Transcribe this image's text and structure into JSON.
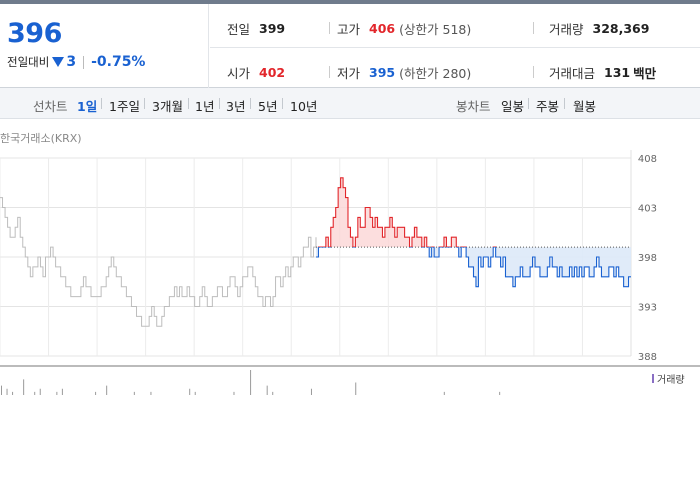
{
  "current": {
    "price": "396",
    "change_label": "전일대비",
    "change_direction": "down",
    "change": "3",
    "rate": "-0.75%"
  },
  "stats": {
    "prev_close": {
      "label": "전일",
      "value": "399"
    },
    "high": {
      "label": "고가",
      "value": "406",
      "limit_label": "상한가",
      "limit_value": "518"
    },
    "volume": {
      "label": "거래량",
      "value": "328,369"
    },
    "open": {
      "label": "시가",
      "value": "402"
    },
    "low": {
      "label": "저가",
      "value": "395",
      "limit_label": "하한가",
      "limit_value": "280"
    },
    "amount": {
      "label": "거래대금",
      "value": "131",
      "unit": "백만"
    }
  },
  "line_chart": {
    "title": "선차트",
    "options": [
      "1일",
      "1주일",
      "3개월",
      "1년",
      "3년",
      "5년",
      "10년"
    ],
    "selected": "1일"
  },
  "candle_chart": {
    "title": "봉차트",
    "options": [
      "일봉",
      "주봉",
      "월봉"
    ]
  },
  "source_label": "한국거래소(KRX)",
  "volume_legend": "거래량",
  "colors": {
    "up": "#e2262b",
    "down": "#1961d1",
    "prev_day": "#bdbdbd",
    "volume": "#8a6fc4"
  },
  "chart_data": {
    "type": "line",
    "y_ticks": [
      "408",
      "403",
      "398",
      "393",
      "388"
    ],
    "ylim": [
      388,
      408
    ],
    "baseline": 399,
    "grid": true,
    "series": [
      {
        "values": [
          404,
          403,
          402,
          401,
          400,
          400,
          401,
          402,
          400,
          399,
          398,
          397,
          396,
          397,
          397,
          398,
          397,
          396,
          398,
          398,
          399,
          398,
          397,
          397,
          396,
          396,
          395,
          395,
          394,
          394,
          394,
          394,
          395,
          396,
          395,
          395,
          394,
          394,
          394,
          394,
          395,
          395,
          396,
          397,
          398,
          397,
          396,
          396,
          395,
          395,
          394,
          394,
          393,
          393,
          392,
          392,
          391,
          391,
          391,
          392,
          393,
          392,
          391,
          391,
          392,
          393,
          393,
          394,
          394,
          395,
          394,
          395,
          394,
          394,
          395,
          394,
          394,
          393,
          393,
          394,
          395,
          394,
          393,
          393,
          394,
          394,
          395,
          395,
          394,
          394,
          395,
          396,
          396,
          395,
          394,
          395,
          396,
          396,
          397,
          397,
          396,
          395,
          394,
          394,
          393,
          394,
          394,
          393,
          394,
          396,
          396,
          395,
          396,
          397,
          396,
          397,
          398,
          398,
          397,
          398,
          399,
          399,
          400,
          398,
          399,
          400
        ]
      },
      {
        "values": [
          398,
          399,
          399,
          399,
          400,
          399,
          401,
          402,
          403,
          405,
          406,
          405,
          404,
          401,
          400,
          399,
          400,
          402,
          401,
          401,
          403,
          403,
          402,
          401,
          402,
          401,
          401,
          400,
          401,
          401,
          402,
          401,
          400,
          401,
          401,
          401,
          400,
          400,
          399,
          400,
          401,
          400,
          400,
          399,
          400,
          399,
          398,
          399,
          398,
          398,
          399,
          399,
          400,
          399,
          399,
          400,
          400,
          399,
          398,
          399,
          399,
          398,
          397,
          397,
          396,
          395,
          398,
          397,
          398,
          398,
          397,
          398,
          399,
          398,
          398,
          397,
          398,
          396,
          396,
          396,
          395,
          396,
          396,
          397,
          396,
          396,
          396,
          397,
          398,
          397,
          397,
          396,
          396,
          396,
          397,
          398,
          397,
          397,
          396,
          397,
          396,
          396,
          396,
          397,
          396,
          397,
          396,
          397,
          396,
          397,
          397,
          396,
          396,
          397,
          398,
          397,
          396,
          396,
          396,
          397,
          397,
          396,
          397,
          396,
          396,
          395,
          395,
          396,
          396
        ]
      }
    ],
    "volume": [
      3,
      2,
      1,
      0,
      5,
      0,
      1,
      2,
      0,
      0,
      1,
      2,
      0,
      0,
      0,
      0,
      0,
      1,
      0,
      3,
      0,
      0,
      0,
      0,
      1,
      0,
      0,
      1,
      0,
      0,
      0,
      0,
      0,
      0,
      2,
      1,
      0,
      0,
      0,
      0,
      0,
      0,
      1,
      0,
      0,
      8,
      0,
      0,
      3,
      1,
      0,
      0,
      0,
      0,
      0,
      0,
      2,
      0,
      0,
      0,
      0,
      0,
      0,
      0,
      4,
      0,
      0,
      0,
      0,
      0,
      0,
      0,
      0,
      0,
      0,
      0,
      0,
      0,
      0,
      0,
      1,
      0,
      0,
      0,
      0,
      0,
      0,
      0,
      0,
      0,
      1,
      0,
      0,
      0,
      0,
      0,
      0,
      0,
      0,
      0,
      0,
      0,
      0,
      0,
      0,
      0,
      0,
      0,
      0,
      0,
      0,
      0,
      0,
      0
    ]
  }
}
